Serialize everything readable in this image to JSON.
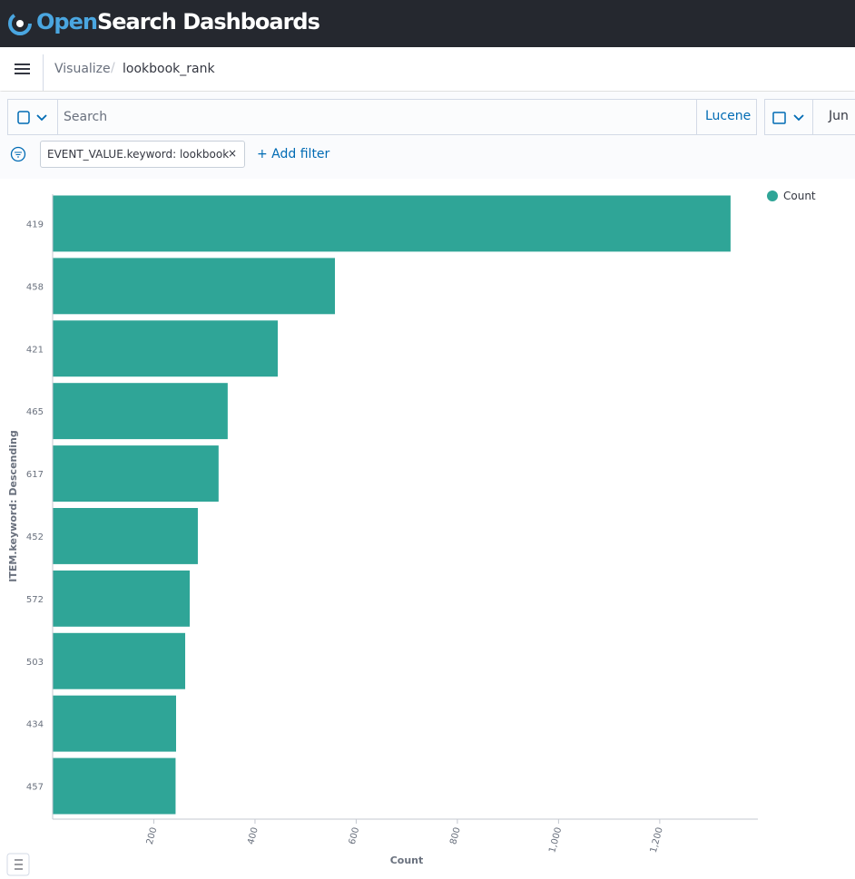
{
  "header": {
    "brand_prefix": "Open",
    "brand_rest": "Search Dashboards"
  },
  "breadcrumbs": [
    "Visualize",
    "lookbook_rank"
  ],
  "query_bar": {
    "placeholder": "Search",
    "language": "Lucene",
    "date": "Jun"
  },
  "filters": {
    "pill": "EVENT_VALUE.keyword: lookbook",
    "add": "+ Add filter"
  },
  "chart_data": {
    "type": "hbar",
    "x_label": "Count",
    "y_label": "ITEM.keyword: Descending",
    "categories": [
      "419",
      "458",
      "421",
      "465",
      "617",
      "452",
      "572",
      "503",
      "434",
      "457"
    ],
    "series": [
      {
        "name": "Count",
        "color": "#2fa597",
        "values": [
          1340,
          558,
          445,
          346,
          328,
          287,
          271,
          262,
          244,
          243
        ]
      }
    ],
    "xlim": [
      0,
      1394
    ],
    "xticks": [
      200,
      400,
      600,
      800,
      {
        "value": 1000,
        "label": "1,000"
      },
      {
        "value": 1200,
        "label": "1,200"
      }
    ],
    "legend": "top-right"
  }
}
